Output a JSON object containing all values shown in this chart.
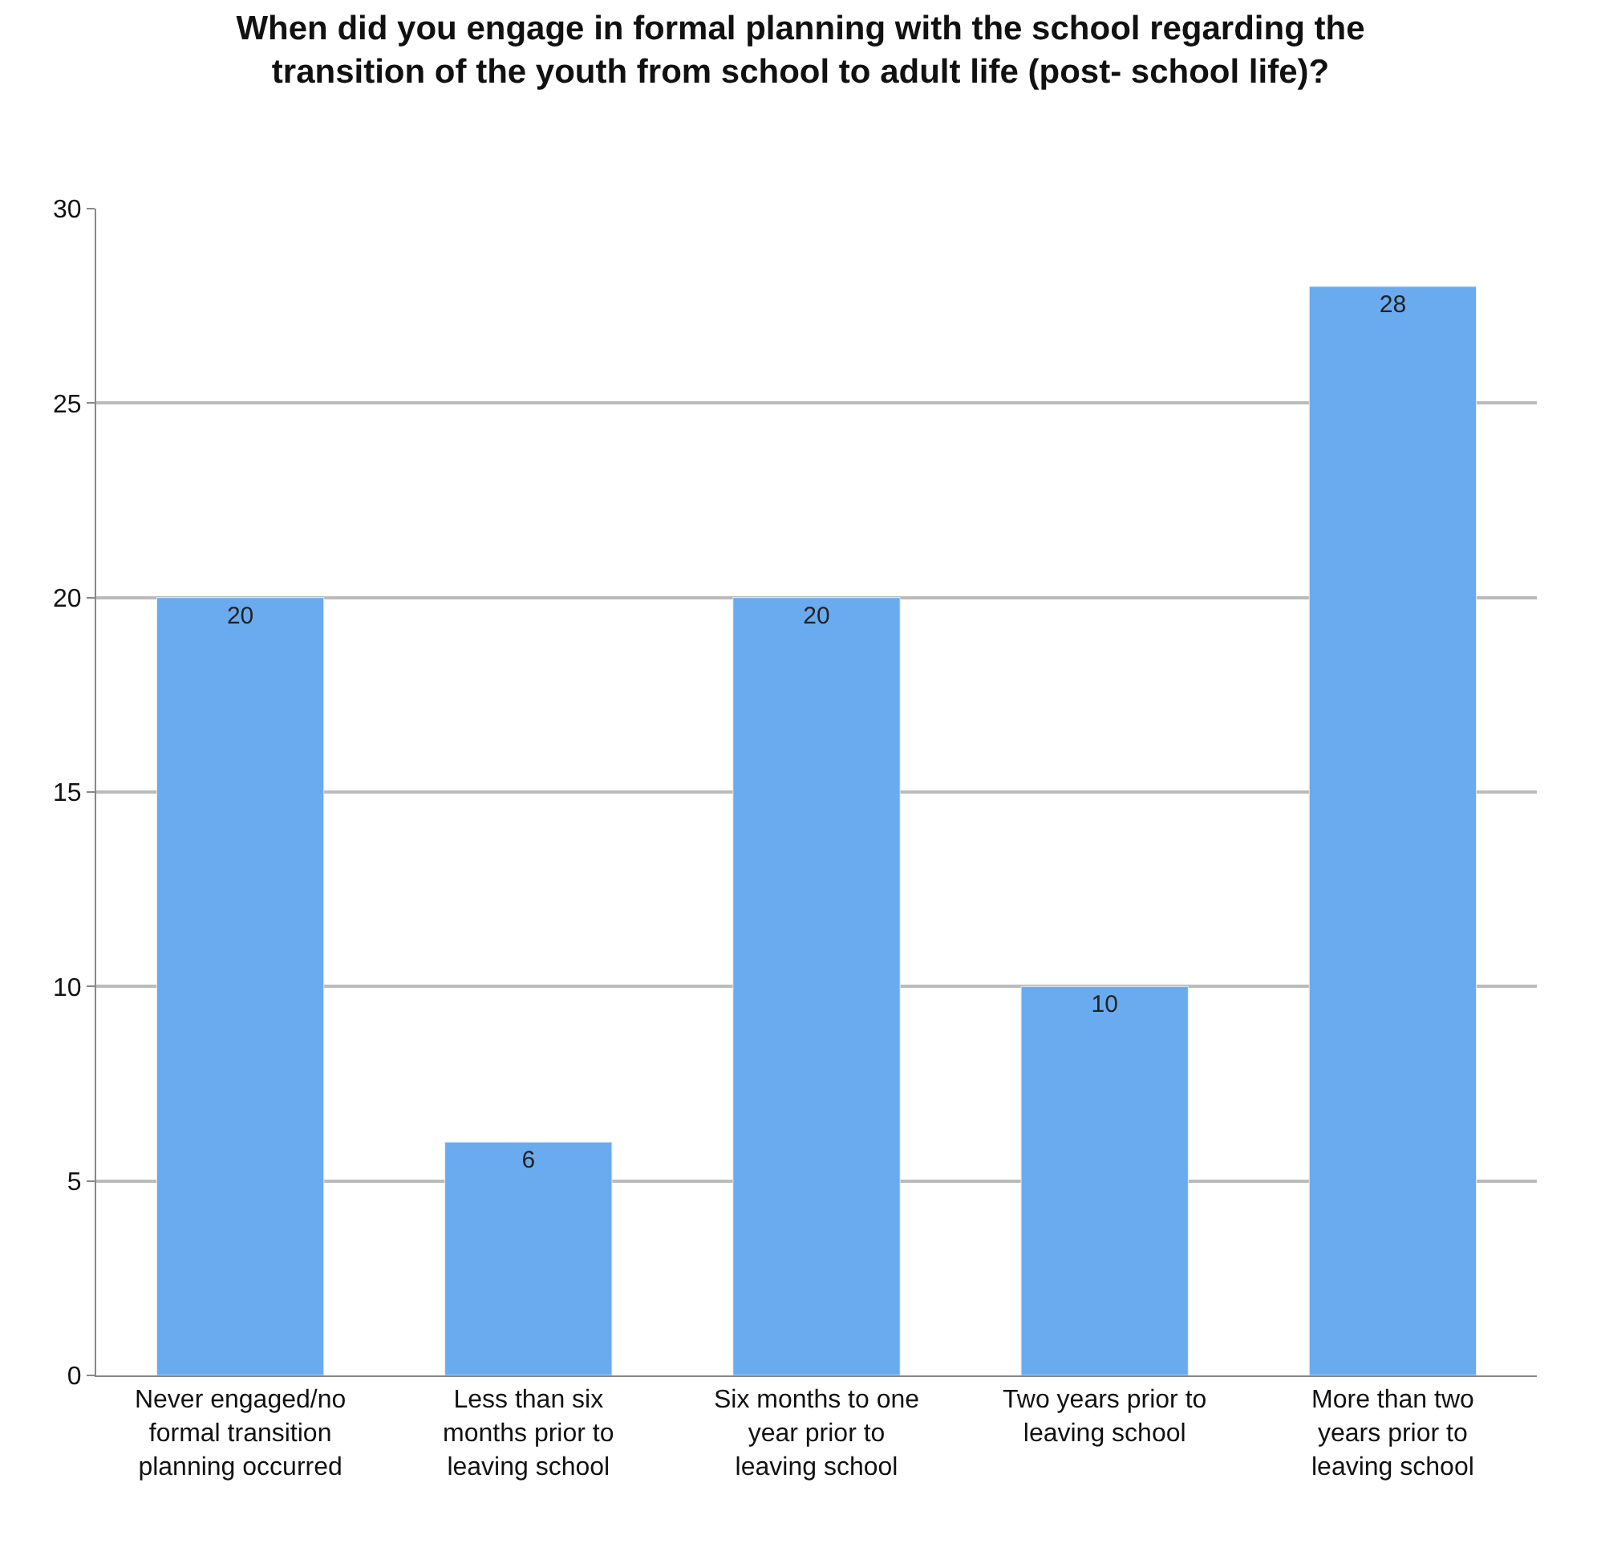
{
  "chart_data": {
    "type": "bar",
    "title": "When did you engage in formal planning with the school regarding the transition of the youth from school to adult life (post- school life)?",
    "categories": [
      "Never engaged/no formal transition planning occurred",
      "Less than six months prior to leaving school",
      "Six months to one year prior to leaving school",
      "Two years prior to leaving school",
      "More than two years prior to leaving school"
    ],
    "values": [
      20,
      6,
      20,
      10,
      28
    ],
    "color": "#6aabf0",
    "ylim": [
      0,
      30
    ],
    "yticks": [
      0,
      5,
      10,
      15,
      20,
      25,
      30
    ],
    "grid": "y",
    "data_labels": true
  }
}
